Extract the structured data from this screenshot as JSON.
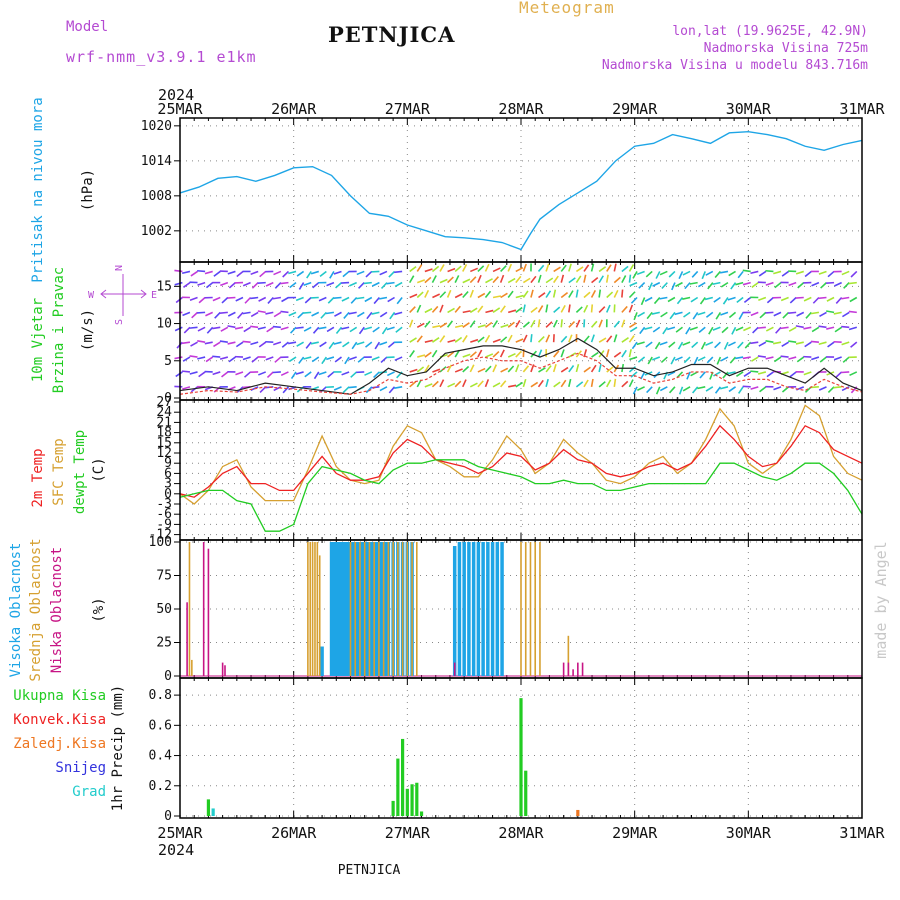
{
  "header": {
    "title": "PETNJICA",
    "model_label": "Model",
    "model_name": "wrf-nmm_v3.9.1  e1km",
    "meteogram_label": "Meteogram",
    "lonlat": "lon,lat (19.9625E, 42.9N)",
    "altitude": "Nadmorska Visina 725m",
    "model_altitude": "Nadmorska Visina u modelu 843.716m",
    "footer_title": "PETNJICA",
    "credit": "made by Angel"
  },
  "x_axis": {
    "year": "2024",
    "days": [
      "25MAR",
      "26MAR",
      "27MAR",
      "28MAR",
      "29MAR",
      "30MAR",
      "31MAR"
    ]
  },
  "colors": {
    "pressure": "#1ea5e6",
    "temp2m": "#ee2222",
    "sfc": "#d6a030",
    "dewpt": "#22cc22",
    "high_cloud": "#1ea5e6",
    "mid_cloud": "#d6a030",
    "low_cloud": "#c71585",
    "total_precip": "#22cc22",
    "conv_precip": "#ee2222",
    "frozen_precip": "#ee7722",
    "snow": "#3333dd",
    "graupel": "#22cccc",
    "purple_text": "#b44ad2"
  },
  "panels": {
    "pressure": {
      "label": "Pritisak na nivou mora",
      "unit": "(hPa)"
    },
    "wind": {
      "label1": "10m Vjetar",
      "label2": "Brzina i Pravac",
      "unit": "(m/s)",
      "compass_n": "N",
      "compass_s": "S",
      "compass_w": "W",
      "compass_e": "E"
    },
    "temp": {
      "label1": "2m Temp",
      "label2": "SFC Temp",
      "label3": "dewpt Temp",
      "unit": "(C)"
    },
    "cloud": {
      "label1": "Visoka Oblacnost",
      "label2": "Srednja Oblacnost",
      "label3": "Niska Oblacnost",
      "unit": "(%)"
    },
    "precip": {
      "label": "1hr Precip (mm)",
      "legend": [
        "Ukupna Kisa",
        "Konvek.Kisa",
        "Zaledj.Kisa",
        "Snijeg",
        "Grad"
      ]
    }
  },
  "chart_data": [
    {
      "type": "line",
      "name": "pressure",
      "ylabel": "Pritisak na nivou mora (hPa)",
      "ylim": [
        997,
        1021
      ],
      "yticks": [
        1002,
        1008,
        1014,
        1020
      ],
      "grid": true,
      "x_hours": [
        0,
        4,
        8,
        12,
        16,
        20,
        24,
        28,
        32,
        36,
        40,
        44,
        48,
        52,
        56,
        60,
        64,
        68,
        72,
        74,
        76,
        80,
        84,
        88,
        92,
        96,
        100,
        104,
        108,
        112,
        116,
        120,
        124,
        128,
        132,
        136,
        140,
        144
      ],
      "series": [
        {
          "values": [
            1008.5,
            1009.5,
            1011,
            1011.3,
            1010.5,
            1011.5,
            1012.8,
            1013,
            1011.5,
            1008,
            1005,
            1004.5,
            1003,
            1002,
            1001,
            1000.8,
            1000.5,
            1000,
            998.8,
            1001.5,
            1004,
            1006.5,
            1008.5,
            1010.5,
            1014,
            1016.5,
            1017,
            1018.5,
            1017.8,
            1017,
            1018.8,
            1019,
            1018.5,
            1017.8,
            1016.5,
            1015.8,
            1016.8,
            1017.5
          ]
        }
      ]
    },
    {
      "type": "line",
      "name": "wind",
      "ylabel": "10m Vjetar Brzina i Pravac (m/s)",
      "ylim": [
        0,
        18
      ],
      "yticks": [
        0,
        5,
        10,
        15
      ],
      "grid": true,
      "barb_rows": [
        1.5,
        3.5,
        5.5,
        7.5,
        9.5,
        11.5,
        13.5,
        15.5,
        17
      ],
      "x_hours": [
        0,
        6,
        12,
        18,
        24,
        30,
        36,
        40,
        44,
        48,
        52,
        56,
        60,
        64,
        68,
        72,
        76,
        80,
        84,
        88,
        92,
        96,
        100,
        104,
        108,
        112,
        116,
        120,
        124,
        128,
        132,
        136,
        140,
        144
      ],
      "series": [
        {
          "values": [
            1,
            1.5,
            1,
            2,
            1.5,
            1,
            0.5,
            2,
            4,
            3,
            3.5,
            6,
            6.5,
            7,
            7,
            6.5,
            5.5,
            6.5,
            8,
            6.5,
            4,
            4,
            3,
            3.5,
            4.5,
            4.5,
            3,
            4,
            4,
            3,
            2,
            4,
            2,
            1
          ]
        },
        {
          "values": [
            0.5,
            1,
            0.8,
            1.5,
            1.2,
            0.8,
            0.5,
            1,
            2.5,
            2,
            2.5,
            4,
            5,
            5.5,
            5,
            5,
            4,
            5,
            6,
            5,
            3,
            3,
            2,
            2.5,
            3.5,
            3.5,
            2,
            2.5,
            2.5,
            1.5,
            1,
            2.5,
            1.5,
            0.8
          ]
        }
      ]
    },
    {
      "type": "line",
      "name": "temperature",
      "ylabel": "(C)",
      "ylim": [
        -13,
        27
      ],
      "yticks": [
        -12,
        -9,
        -6,
        -3,
        0,
        3,
        6,
        9,
        12,
        15,
        18,
        21,
        24,
        27
      ],
      "grid": true,
      "x_hours": [
        0,
        3,
        6,
        9,
        12,
        15,
        18,
        21,
        24,
        27,
        30,
        33,
        36,
        39,
        42,
        45,
        48,
        51,
        54,
        57,
        60,
        63,
        66,
        69,
        72,
        75,
        78,
        81,
        84,
        87,
        90,
        93,
        96,
        99,
        102,
        105,
        108,
        111,
        114,
        117,
        120,
        123,
        126,
        129,
        132,
        135,
        138,
        141,
        144
      ],
      "series": [
        {
          "name": "2m Temp",
          "values": [
            0,
            -1,
            2,
            6,
            8,
            3,
            3,
            1,
            1,
            6,
            11,
            6,
            4,
            4,
            5,
            12,
            16,
            14,
            10,
            9,
            8,
            6,
            8,
            12,
            11,
            7,
            9,
            13,
            10,
            9,
            6,
            5,
            6,
            8,
            9,
            7,
            9,
            14,
            20,
            16,
            11,
            8,
            9,
            14,
            20,
            18,
            13,
            11,
            9
          ]
        },
        {
          "name": "SFC Temp",
          "values": [
            0,
            -3,
            1,
            8,
            10,
            2,
            -2,
            -2,
            -2,
            7,
            17,
            8,
            4,
            3,
            4,
            14,
            20,
            18,
            10,
            8,
            5,
            5,
            10,
            17,
            13,
            6,
            9,
            16,
            12,
            9,
            4,
            3,
            5,
            9,
            11,
            6,
            9,
            16,
            25,
            20,
            9,
            6,
            9,
            16,
            26,
            23,
            11,
            6,
            4
          ]
        },
        {
          "name": "dewpt Temp",
          "values": [
            -1,
            0,
            1,
            1,
            -2,
            -3,
            -11,
            -11,
            -9,
            3,
            8,
            7,
            6,
            4,
            3,
            7,
            9,
            9,
            10,
            10,
            10,
            8,
            7,
            6,
            5,
            3,
            3,
            4,
            3,
            3,
            1,
            1,
            2,
            3,
            3,
            3,
            3,
            3,
            9,
            9,
            7,
            5,
            4,
            6,
            9,
            9,
            6,
            1,
            -6
          ]
        }
      ]
    },
    {
      "type": "bar",
      "name": "cloudiness",
      "ylabel": "(%)",
      "ylim": [
        0,
        100
      ],
      "yticks": [
        0,
        25,
        50,
        75,
        100
      ],
      "grid": true,
      "series": [
        {
          "name": "Visoka Oblacnost",
          "x_hours": [
            30,
            32,
            32.5,
            33,
            33.5,
            34,
            34.5,
            35,
            35.5,
            36,
            36.5,
            37,
            37.5,
            38,
            38.5,
            39,
            39.5,
            40,
            40.5,
            41,
            41.5,
            42,
            42.5,
            43,
            43.5,
            44,
            45,
            46,
            47,
            48,
            49,
            58,
            59,
            60,
            61,
            62,
            63,
            64,
            65,
            66,
            67,
            68
          ],
          "values": [
            22,
            100,
            100,
            100,
            100,
            100,
            100,
            100,
            100,
            100,
            100,
            100,
            100,
            100,
            100,
            100,
            100,
            100,
            100,
            100,
            100,
            100,
            100,
            100,
            100,
            100,
            100,
            100,
            100,
            100,
            100,
            97,
            100,
            100,
            100,
            100,
            100,
            100,
            100,
            100,
            100,
            100
          ]
        },
        {
          "name": "Srednja Oblacnost",
          "x_hours": [
            2,
            2.5,
            27,
            27.5,
            28,
            28.5,
            29,
            29.5,
            36,
            37,
            38,
            39,
            40,
            41,
            42,
            43,
            44,
            45,
            46,
            47,
            48,
            49,
            50,
            72,
            73,
            74,
            75,
            76,
            82
          ],
          "values": [
            100,
            12,
            100,
            100,
            100,
            100,
            100,
            90,
            100,
            100,
            100,
            100,
            100,
            100,
            100,
            100,
            100,
            100,
            100,
            100,
            100,
            100,
            100,
            100,
            100,
            100,
            100,
            100,
            30
          ]
        },
        {
          "name": "Niska Oblacnost",
          "x_hours": [
            1.5,
            5,
            6,
            9,
            9.5,
            58,
            81,
            82,
            83,
            84,
            85
          ],
          "values": [
            55,
            100,
            95,
            10,
            8,
            10,
            10,
            10,
            5,
            10,
            10
          ]
        }
      ]
    },
    {
      "type": "bar",
      "name": "precipitation",
      "ylabel": "1hr Precip (mm)",
      "ylim": [
        0,
        0.9
      ],
      "yticks": [
        0,
        0.2,
        0.4,
        0.6,
        0.8
      ],
      "grid": true,
      "series": [
        {
          "name": "Ukupna Kisa",
          "x_hours": [
            6,
            45,
            46,
            47,
            48,
            49,
            50,
            51,
            72,
            73
          ],
          "values": [
            0.11,
            0.1,
            0.38,
            0.51,
            0.18,
            0.21,
            0.22,
            0.03,
            0.78,
            0.3
          ]
        },
        {
          "name": "Konvek.Kisa",
          "x_hours": [],
          "values": []
        },
        {
          "name": "Zaledj.Kisa",
          "x_hours": [
            84
          ],
          "values": [
            0.04
          ]
        },
        {
          "name": "Snijeg",
          "x_hours": [],
          "values": []
        },
        {
          "name": "Grad",
          "x_hours": [
            7
          ],
          "values": [
            0.05
          ]
        }
      ]
    }
  ]
}
